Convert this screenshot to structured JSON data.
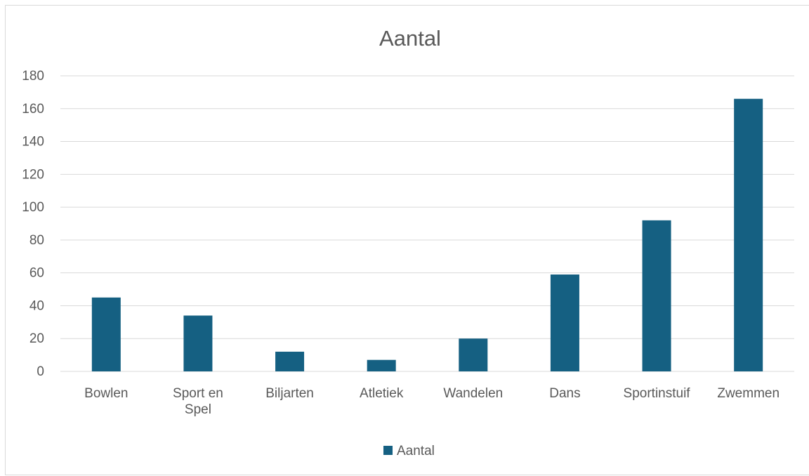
{
  "chart_data": {
    "type": "bar",
    "title": "Aantal",
    "categories": [
      "Bowlen",
      "Sport en Spel",
      "Biljarten",
      "Atletiek",
      "Wandelen",
      "Dans",
      "Sportinstuif",
      "Zwemmen"
    ],
    "category_label_lines": [
      [
        "Bowlen"
      ],
      [
        "Sport en",
        "Spel"
      ],
      [
        "Biljarten"
      ],
      [
        "Atletiek"
      ],
      [
        "Wandelen"
      ],
      [
        "Dans"
      ],
      [
        "Sportinstuif"
      ],
      [
        "Zwemmen"
      ]
    ],
    "series": [
      {
        "name": "Aantal",
        "values": [
          45,
          34,
          12,
          7,
          20,
          59,
          92,
          166
        ],
        "color": "#156082"
      }
    ],
    "yticks": [
      "0",
      "20",
      "40",
      "60",
      "80",
      "100",
      "120",
      "140",
      "160",
      "180"
    ],
    "ylim": [
      0,
      180
    ],
    "grid": true,
    "legend_position": "bottom",
    "xlabel": "",
    "ylabel": ""
  }
}
